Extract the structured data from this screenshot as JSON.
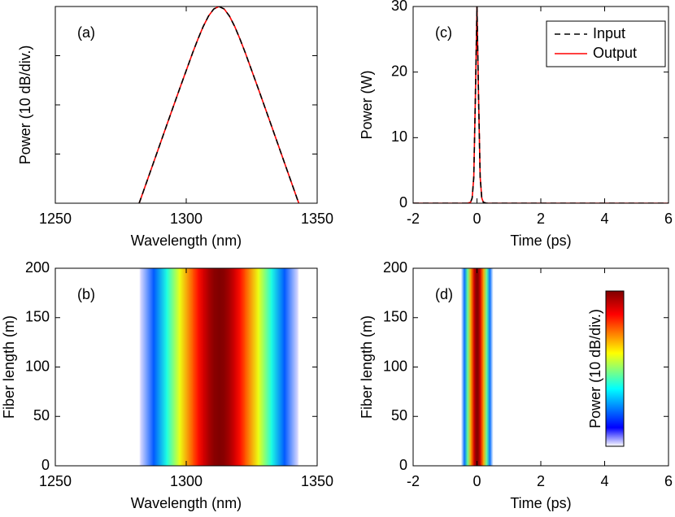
{
  "chart_data": [
    {
      "type": "line",
      "panel_label": "(a)",
      "xlabel": "Wavelength (nm)",
      "ylabel": "Power (10 dB/div.)",
      "xlim": [
        1250,
        1350
      ],
      "xticks": [
        1250,
        1300,
        1350
      ],
      "ylim": [
        -40,
        0
      ],
      "yticks": [
        -40,
        -30,
        -20,
        -10,
        0
      ],
      "show_ytick_labels": false,
      "x": [
        1282,
        1282.5,
        1287.5,
        1292.5,
        1297.5,
        1302.5,
        1304.5,
        1306.5,
        1308.5,
        1310.5,
        1312.5,
        1314.5,
        1316.5,
        1318.5,
        1320.5,
        1322.5,
        1327.5,
        1332.5,
        1337.5,
        1342.5,
        1343
      ],
      "series": [
        {
          "color": "#000000",
          "dashed": true,
          "values": [
            -40,
            -39.29,
            -31.75,
            -24.2,
            -16.69,
            -9.34,
            -6.59,
            -4.05,
            -1.95,
            -0.51,
            0,
            -0.51,
            -1.95,
            -4.05,
            -6.59,
            -9.34,
            -16.69,
            -24.2,
            -31.75,
            -39.29,
            -40
          ]
        },
        {
          "color": "#ff0000",
          "dashed": false,
          "values": [
            -40,
            -39.29,
            -31.75,
            -24.2,
            -16.69,
            -9.34,
            -6.59,
            -4.05,
            -1.95,
            -0.51,
            0,
            -0.51,
            -1.95,
            -4.05,
            -6.59,
            -9.34,
            -16.69,
            -24.2,
            -31.75,
            -39.29,
            -40
          ]
        }
      ]
    },
    {
      "type": "heatmap",
      "panel_label": "(b)",
      "xlabel": "Wavelength (nm)",
      "ylabel": "Fiber length (m)",
      "xlim": [
        1250,
        1350
      ],
      "xticks": [
        1250,
        1300,
        1350
      ],
      "ylim": [
        0,
        200
      ],
      "yticks": [
        0,
        50,
        100,
        150,
        200
      ],
      "clim": [
        -40,
        0
      ],
      "colormap": [
        [
          0,
          "#ffffff"
        ],
        [
          0.12,
          "#0000ff"
        ],
        [
          0.37,
          "#00ffff"
        ],
        [
          0.6,
          "#ffff00"
        ],
        [
          0.85,
          "#ff0000"
        ],
        [
          1,
          "#800000"
        ]
      ],
      "x": [
        1282,
        1282.5,
        1287.5,
        1292.5,
        1297.5,
        1302.5,
        1304.5,
        1306.5,
        1308.5,
        1310.5,
        1312.5,
        1314.5,
        1316.5,
        1318.5,
        1320.5,
        1322.5,
        1327.5,
        1332.5,
        1337.5,
        1342.5,
        1343
      ],
      "z": [
        -40,
        -39.29,
        -31.75,
        -24.2,
        -16.69,
        -9.34,
        -6.59,
        -4.05,
        -1.95,
        -0.51,
        0,
        -0.51,
        -1.95,
        -4.05,
        -6.59,
        -9.34,
        -16.69,
        -24.2,
        -31.75,
        -39.29,
        -40
      ]
    },
    {
      "type": "line",
      "panel_label": "(c)",
      "xlabel": "Time (ps)",
      "ylabel": "Power (W)",
      "xlim": [
        -2,
        6
      ],
      "xticks": [
        -2,
        0,
        2,
        4,
        6
      ],
      "ylim": [
        0,
        30
      ],
      "yticks": [
        0,
        10,
        20,
        30
      ],
      "legend": "upper right",
      "x": [
        -2,
        -0.3,
        -0.2,
        -0.15,
        -0.1,
        -0.05,
        0,
        0.05,
        0.1,
        0.15,
        0.2,
        0.3,
        6
      ],
      "series": [
        {
          "name": "Input",
          "color": "#000000",
          "dashed": true,
          "values": [
            0,
            0,
            0.15,
            0.8,
            3.97,
            16.1,
            30,
            16.1,
            3.97,
            0.8,
            0.15,
            0,
            0
          ]
        },
        {
          "name": "Output",
          "color": "#ff0000",
          "dashed": false,
          "values": [
            0,
            0,
            0.15,
            0.8,
            3.97,
            16.1,
            30,
            16.1,
            3.97,
            0.8,
            0.15,
            0,
            0
          ]
        }
      ]
    },
    {
      "type": "heatmap",
      "panel_label": "(d)",
      "xlabel": "Time (ps)",
      "ylabel": "Fiber length (m)",
      "xlim": [
        -2,
        6
      ],
      "xticks": [
        -2,
        0,
        2,
        4,
        6
      ],
      "ylim": [
        0,
        200
      ],
      "yticks": [
        0,
        50,
        100,
        150,
        200
      ],
      "clim": [
        -40,
        0
      ],
      "colorbar_label": "Power (10 dB/div.)",
      "colormap": [
        [
          0,
          "#ffffff"
        ],
        [
          0.12,
          "#0000ff"
        ],
        [
          0.37,
          "#00ffff"
        ],
        [
          0.6,
          "#ffff00"
        ],
        [
          0.85,
          "#ff0000"
        ],
        [
          1,
          "#800000"
        ]
      ],
      "x": [
        -0.5,
        -0.4,
        -0.3,
        -0.2,
        -0.1,
        -0.05,
        0,
        0.05,
        0.1,
        0.2,
        0.3,
        0.4,
        0.5
      ],
      "z": [
        -40,
        -30.96,
        -21.7,
        -12.6,
        -4.19,
        -1.18,
        0,
        -1.18,
        -4.19,
        -12.6,
        -21.7,
        -30.96,
        -40
      ]
    }
  ]
}
